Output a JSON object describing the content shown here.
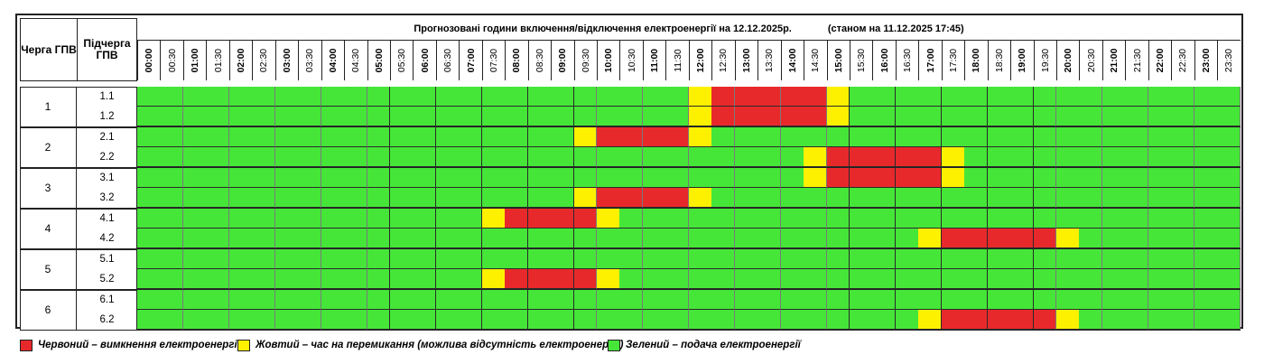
{
  "header": {
    "queue_col": "Черга ГПВ",
    "subqueue_col": "Підчерга ГПВ",
    "title": "Прогнозовані години включення/відключення електроенергії на 12.12.2025р.",
    "status_note": "(станом на 11.12.2025 17:45)"
  },
  "times": [
    "00:00",
    "00:30",
    "01:00",
    "01:30",
    "02:00",
    "02:30",
    "03:00",
    "03:30",
    "04:00",
    "04:30",
    "05:00",
    "05:30",
    "06:00",
    "06:30",
    "07:00",
    "07:30",
    "08:00",
    "08:30",
    "09:00",
    "09:30",
    "10:00",
    "10:30",
    "11:00",
    "11:30",
    "12:00",
    "12:30",
    "13:00",
    "13:30",
    "14:00",
    "14:30",
    "15:00",
    "15:30",
    "16:00",
    "16:30",
    "17:00",
    "17:30",
    "18:00",
    "18:30",
    "19:00",
    "19:30",
    "20:00",
    "20:30",
    "21:00",
    "21:30",
    "22:00",
    "22:30",
    "23:00",
    "23:30"
  ],
  "colors": {
    "red": "#e8292b",
    "yellow": "#fdf100",
    "green": "#45e638"
  },
  "queues": [
    {
      "label": "1",
      "subqueues": [
        {
          "label": "1.1",
          "red": [
            [
              12.5,
              15
            ]
          ],
          "yellow": [
            12,
            15
          ]
        },
        {
          "label": "1.2",
          "red": [
            [
              12.5,
              15
            ]
          ],
          "yellow": [
            12,
            15
          ]
        }
      ]
    },
    {
      "label": "2",
      "subqueues": [
        {
          "label": "2.1",
          "red": [
            [
              10,
              12
            ]
          ],
          "yellow": [
            9.5,
            12
          ]
        },
        {
          "label": "2.2",
          "red": [
            [
              15,
              17.5
            ]
          ],
          "yellow": [
            14.5,
            17.5
          ]
        }
      ]
    },
    {
      "label": "3",
      "subqueues": [
        {
          "label": "3.1",
          "red": [
            [
              15,
              17.5
            ]
          ],
          "yellow": [
            14.5,
            17.5
          ]
        },
        {
          "label": "3.2",
          "red": [
            [
              10,
              12
            ]
          ],
          "yellow": [
            9.5,
            12
          ]
        }
      ]
    },
    {
      "label": "4",
      "subqueues": [
        {
          "label": "4.1",
          "red": [
            [
              8,
              10
            ]
          ],
          "yellow": [
            7.5,
            10
          ]
        },
        {
          "label": "4.2",
          "red": [
            [
              17.5,
              20
            ]
          ],
          "yellow": [
            17,
            20
          ]
        }
      ]
    },
    {
      "label": "5",
      "subqueues": [
        {
          "label": "5.1",
          "red": [],
          "yellow": []
        },
        {
          "label": "5.2",
          "red": [
            [
              8,
              10
            ]
          ],
          "yellow": [
            7.5,
            10
          ]
        }
      ]
    },
    {
      "label": "6",
      "subqueues": [
        {
          "label": "6.1",
          "red": [],
          "yellow": []
        },
        {
          "label": "6.2",
          "red": [
            [
              17.5,
              20
            ]
          ],
          "yellow": [
            17,
            20
          ]
        }
      ]
    }
  ],
  "legend": {
    "red": "Червоний – вимкнення електроенергії",
    "yellow": "Жовтий – час на перемикання (можлива відсутність електроенергії)",
    "green": "Зелений – подача електроенергії"
  }
}
